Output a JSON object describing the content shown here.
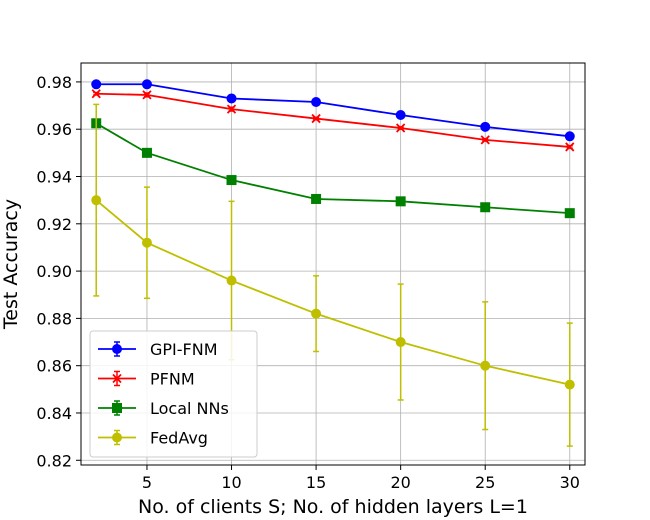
{
  "chart_data": {
    "type": "line",
    "title": "",
    "xlabel": "No. of clients S; No. of hidden layers L=1",
    "ylabel": "Test Accuracy",
    "xlim": [
      1.1,
      30.9
    ],
    "ylim": [
      0.818,
      0.988
    ],
    "xticks": [
      5,
      10,
      15,
      20,
      25,
      30
    ],
    "yticks": [
      0.82,
      0.84,
      0.86,
      0.88,
      0.9,
      0.92,
      0.94,
      0.96,
      0.98
    ],
    "ytick_labels": [
      "0.82",
      "0.84",
      "0.86",
      "0.88",
      "0.90",
      "0.92",
      "0.94",
      "0.96",
      "0.98"
    ],
    "grid": true,
    "legend_position": "lower-left",
    "x": [
      2,
      5,
      10,
      15,
      20,
      25,
      30
    ],
    "series": [
      {
        "name": "GPI-FNM",
        "color": "#0000ff",
        "marker": "circle",
        "values": [
          0.979,
          0.979,
          0.973,
          0.9715,
          0.966,
          0.961,
          0.957
        ],
        "errors": [
          0.0005,
          0.0005,
          0.0005,
          0.0005,
          0.0005,
          0.0005,
          0.0005
        ]
      },
      {
        "name": "PFNM",
        "color": "#ff0000",
        "marker": "x",
        "values": [
          0.975,
          0.9745,
          0.9685,
          0.9645,
          0.9605,
          0.9555,
          0.9525
        ],
        "errors": [
          0.0005,
          0.0008,
          0.0008,
          0.0005,
          0.0005,
          0.0005,
          0.0005
        ]
      },
      {
        "name": "Local NNs",
        "color": "#008000",
        "marker": "square",
        "values": [
          0.9625,
          0.95,
          0.9385,
          0.9305,
          0.9295,
          0.927,
          0.9245
        ],
        "errors": [
          0.0008,
          0.0005,
          0.0012,
          0.0005,
          0.0005,
          0.0005,
          0.0005
        ]
      },
      {
        "name": "FedAvg",
        "color": "#bfbf00",
        "marker": "circle",
        "values": [
          0.93,
          0.912,
          0.896,
          0.882,
          0.87,
          0.86,
          0.852
        ],
        "errors": [
          0.0405,
          0.0235,
          0.0335,
          0.016,
          0.0245,
          0.027,
          0.026
        ]
      }
    ]
  }
}
